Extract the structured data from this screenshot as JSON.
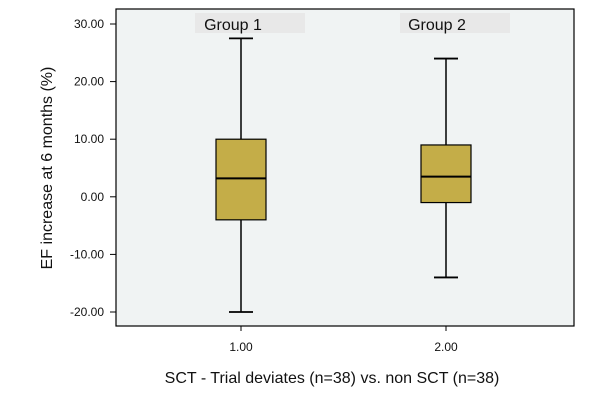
{
  "chart_data": {
    "type": "boxplot",
    "xlabel": "SCT - Trial deviates (n=38) vs. non SCT (n=38)",
    "ylabel": "EF increase at 6 months (%)",
    "ylim": [
      -22,
      32
    ],
    "yticks": [
      "30.00",
      "20.00",
      "10.00",
      "0.00",
      "-10.00",
      "-20.00"
    ],
    "ytick_values": [
      30,
      20,
      10,
      0,
      -10,
      -20
    ],
    "categories": [
      "1.00",
      "2.00"
    ],
    "group_labels": [
      "Group 1",
      "Group 2"
    ],
    "boxes": [
      {
        "category": "1.00",
        "label": "Group 1",
        "min": -20,
        "q1": -4,
        "median": 3.2,
        "q3": 10,
        "max": 27.5
      },
      {
        "category": "2.00",
        "label": "Group 2",
        "min": -14,
        "q1": -1,
        "median": 3.5,
        "q3": 9,
        "max": 24
      }
    ],
    "grid": false,
    "colors": {
      "plot_background": "#f0f3f3",
      "box_fill": "#c4ad48",
      "stroke": "#000000",
      "label_band": "#e8e8e8"
    }
  }
}
